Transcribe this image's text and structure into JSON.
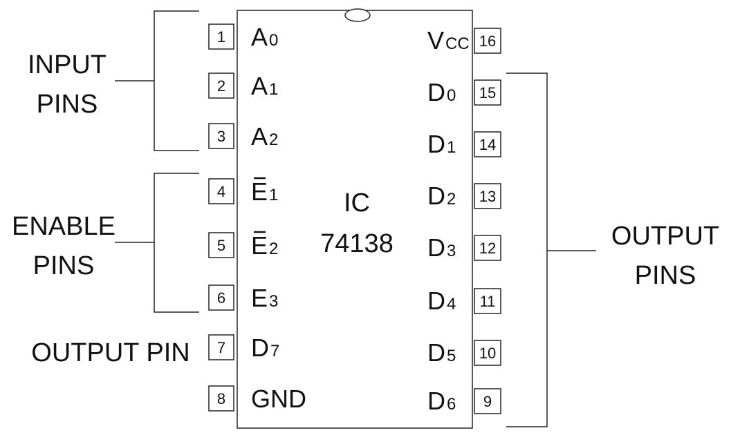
{
  "ic": {
    "name_line1": "IC",
    "name_line2": "74138"
  },
  "left_pins": [
    {
      "num": "1",
      "name": "A",
      "sub": "0",
      "bar": false
    },
    {
      "num": "2",
      "name": "A",
      "sub": "1",
      "bar": false
    },
    {
      "num": "3",
      "name": "A",
      "sub": "2",
      "bar": false
    },
    {
      "num": "4",
      "name": "E",
      "sub": "1",
      "bar": true
    },
    {
      "num": "5",
      "name": "E",
      "sub": "2",
      "bar": true
    },
    {
      "num": "6",
      "name": "E",
      "sub": "3",
      "bar": false
    },
    {
      "num": "7",
      "name": "D",
      "sub": "7",
      "bar": false
    },
    {
      "num": "8",
      "name": "GND",
      "sub": "",
      "bar": false
    }
  ],
  "right_pins": [
    {
      "num": "16",
      "name": "V",
      "sub": "CC"
    },
    {
      "num": "15",
      "name": "D",
      "sub": "0"
    },
    {
      "num": "14",
      "name": "D",
      "sub": "1"
    },
    {
      "num": "13",
      "name": "D",
      "sub": "2"
    },
    {
      "num": "12",
      "name": "D",
      "sub": "3"
    },
    {
      "num": "11",
      "name": "D",
      "sub": "4"
    },
    {
      "num": "10",
      "name": "D",
      "sub": "5"
    },
    {
      "num": "9",
      "name": "D",
      "sub": "6"
    }
  ],
  "groups": {
    "input": [
      "INPUT",
      "PINS"
    ],
    "enable": [
      "ENABLE",
      "PINS"
    ],
    "output_single": "OUTPUT PIN",
    "output": [
      "OUTPUT",
      "PINS"
    ]
  }
}
